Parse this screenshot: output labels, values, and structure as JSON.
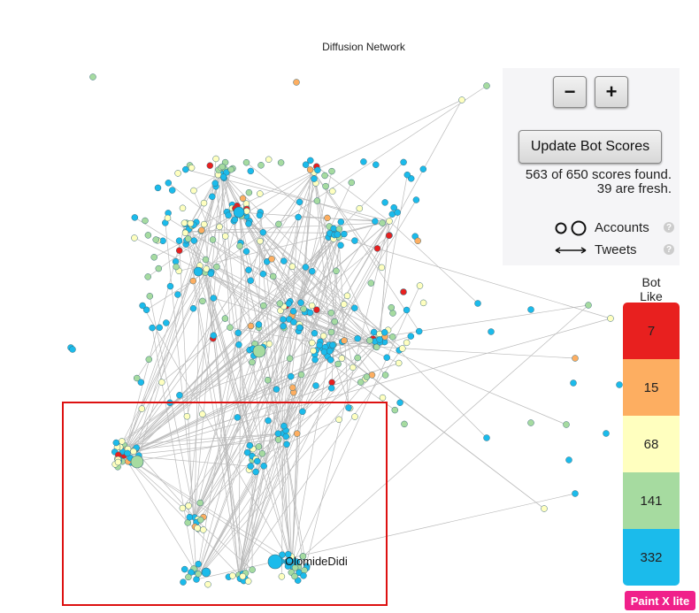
{
  "header": {
    "title": "Diffusion Network"
  },
  "controls": {
    "zoom_out": "−",
    "zoom_in": "+",
    "update_button": "Update Bot Scores",
    "status": [
      "563 of 650 scores found.",
      "39 are fresh."
    ],
    "legend": {
      "accounts": "Accounts",
      "tweets": "Tweets",
      "help": "?"
    }
  },
  "bot_scale": {
    "top_label": [
      "Bot",
      "Like"
    ],
    "levels": [
      {
        "count": 7,
        "color": "#e8201f"
      },
      {
        "count": 15,
        "color": "#fdae61"
      },
      {
        "count": 68,
        "color": "#ffffbf"
      },
      {
        "count": 141,
        "color": "#a6dba0"
      },
      {
        "count": 332,
        "color": "#1bbbeb"
      }
    ]
  },
  "graph": {
    "node_label": "OlomideDidi"
  },
  "badge": "Paint X lite"
}
